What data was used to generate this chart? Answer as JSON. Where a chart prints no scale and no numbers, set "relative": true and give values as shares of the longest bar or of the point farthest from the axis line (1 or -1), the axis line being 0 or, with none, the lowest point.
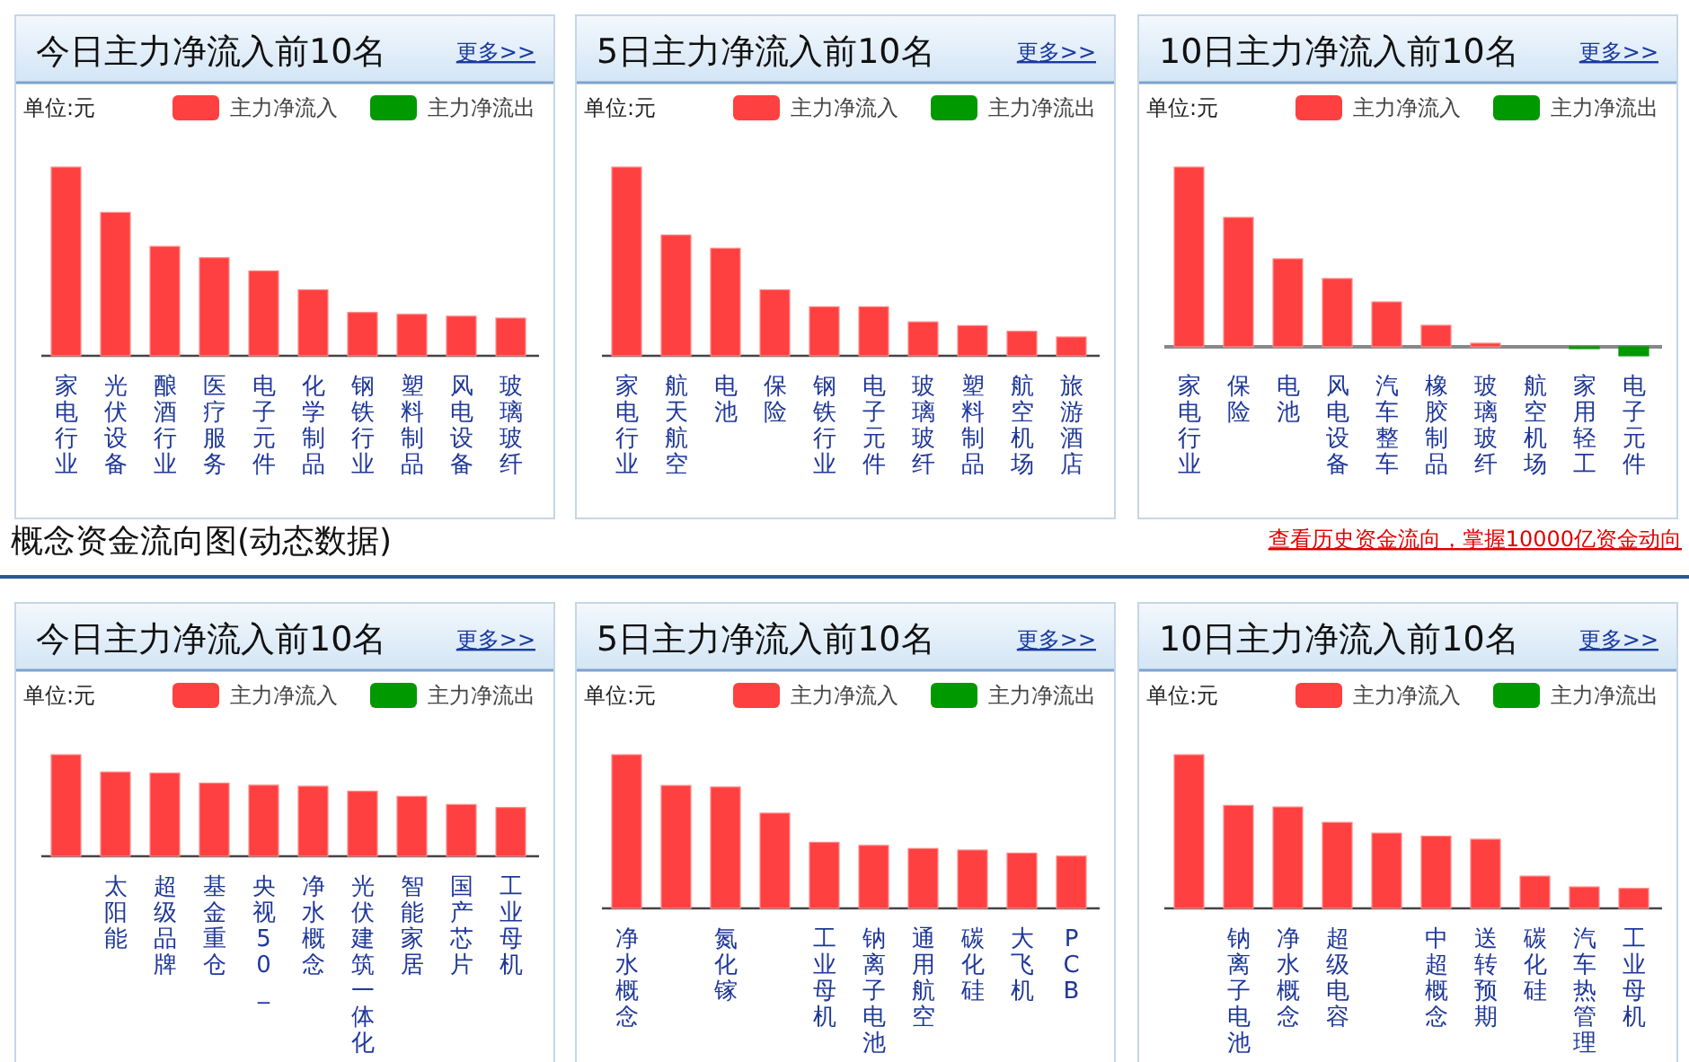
{
  "chart_data": [
    {
      "type": "bar",
      "title": "今日主力净流入前10名",
      "annotations": [
        "更多>>",
        "单位:元"
      ],
      "relative": true,
      "stacked": true,
      "legend": "top right",
      "categories": [
        "家电行业",
        "光伏设备",
        "酿酒行业",
        "医疗服务",
        "电子元件",
        "化学制品",
        "钢铁行业",
        "塑料制品",
        "风电设备",
        "玻璃玻纤"
      ],
      "series": [
        {
          "name": "主力净流入",
          "color": "#ff4040",
          "values": [
            1,
            0.76,
            0.58,
            0.52,
            0.45,
            0.35,
            0.23,
            0.22,
            0.21,
            0.2
          ]
        },
        {
          "name": "主力净流出",
          "color": "#009900",
          "values": [
            null,
            null,
            null,
            null,
            null,
            null,
            null,
            null,
            null,
            null
          ]
        }
      ]
    },
    {
      "type": "bar",
      "title": "5日主力净流入前10名",
      "annotations": [
        "更多>>",
        "单位:元"
      ],
      "relative": true,
      "stacked": true,
      "legend": "top right",
      "categories": [
        "家电行业",
        "航天航空",
        "电池",
        "保险",
        "钢铁行业",
        "电子元件",
        "玻璃玻纤",
        "塑料制品",
        "航空机场",
        "旅游酒店"
      ],
      "series": [
        {
          "name": "主力净流入",
          "color": "#ff4040",
          "values": [
            1,
            0.64,
            0.57,
            0.35,
            0.26,
            0.26,
            0.18,
            0.16,
            0.13,
            0.1
          ]
        },
        {
          "name": "主力净流出",
          "color": "#009900",
          "values": [
            null,
            null,
            null,
            null,
            null,
            null,
            null,
            null,
            null,
            null
          ]
        }
      ]
    },
    {
      "type": "bar",
      "title": "10日主力净流入前10名",
      "annotations": [
        "更多>>",
        "单位:元"
      ],
      "relative": true,
      "stacked": true,
      "legend": "top right",
      "categories": [
        "家电行业",
        "保险",
        "电池",
        "风电设备",
        "汽车整车",
        "橡胶制品",
        "玻璃玻纤",
        "航空机场",
        "家用轻工",
        "电子元件"
      ],
      "series": [
        {
          "name": "主力净流入",
          "color": "#ff4040",
          "values": [
            1,
            0.72,
            0.49,
            0.38,
            0.25,
            0.12,
            0.02,
            0,
            null,
            null
          ]
        },
        {
          "name": "主力净流出",
          "color": "#009900",
          "values": [
            null,
            null,
            null,
            null,
            null,
            null,
            null,
            null,
            -0.01,
            -0.05
          ]
        }
      ]
    },
    {
      "type": "other",
      "title": "概念资金流向图(动态数据)",
      "annotations": [
        "查看历史资金流向，掌握10000亿资金动向"
      ]
    },
    {
      "type": "bar",
      "title": "今日主力净流入前10名",
      "annotations": [
        "更多>>",
        "单位:元"
      ],
      "relative": true,
      "stacked": true,
      "legend": "top right",
      "categories": [
        null,
        "太阳能",
        "超级品牌",
        "基金重仓",
        "央视50_",
        "净水概念",
        "光伏建筑一体化",
        "智能家居",
        "国产芯片",
        "工业母机"
      ],
      "series": [
        {
          "name": "主力净流入",
          "color": "#ff4040",
          "values": [
            1,
            0.83,
            0.82,
            0.72,
            0.7,
            0.69,
            0.64,
            0.59,
            0.51,
            0.48
          ]
        },
        {
          "name": "主力净流出",
          "color": "#009900",
          "values": [
            null,
            null,
            null,
            null,
            null,
            null,
            null,
            null,
            null,
            null
          ]
        }
      ]
    },
    {
      "type": "bar",
      "title": "5日主力净流入前10名",
      "annotations": [
        "更多>>",
        "单位:元"
      ],
      "relative": true,
      "stacked": true,
      "legend": "top right",
      "categories": [
        "净水概念",
        null,
        "氮化镓",
        null,
        "工业母机",
        "钠离子电池",
        "通用航空",
        "碳化硅",
        "大飞机",
        "PCB"
      ],
      "series": [
        {
          "name": "主力净流入",
          "color": "#ff4040",
          "values": [
            1,
            0.8,
            0.79,
            0.62,
            0.43,
            0.41,
            0.39,
            0.38,
            0.36,
            0.34
          ]
        },
        {
          "name": "主力净流出",
          "color": "#009900",
          "values": [
            null,
            null,
            null,
            null,
            null,
            null,
            null,
            null,
            null,
            null
          ]
        }
      ]
    },
    {
      "type": "bar",
      "title": "10日主力净流入前10名",
      "annotations": [
        "更多>>",
        "单位:元"
      ],
      "relative": true,
      "stacked": true,
      "legend": "top right",
      "categories": [
        null,
        "钠离子电池",
        "净水概念",
        "超级电容",
        null,
        "中超概念",
        "送转预期",
        "碳化硅",
        "汽车热管理",
        "工业母机"
      ],
      "series": [
        {
          "name": "主力净流入",
          "color": "#ff4040",
          "values": [
            1,
            0.67,
            0.66,
            0.56,
            0.49,
            0.47,
            0.45,
            0.21,
            0.14,
            0.13
          ]
        },
        {
          "name": "主力净流出",
          "color": "#009900",
          "values": [
            null,
            null,
            null,
            null,
            null,
            null,
            null,
            null,
            null,
            null
          ]
        }
      ]
    }
  ]
}
